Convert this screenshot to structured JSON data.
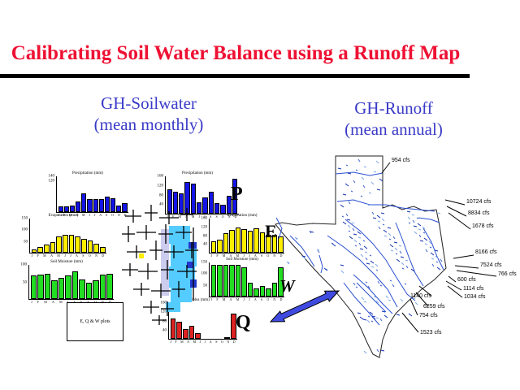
{
  "slide": {
    "title": "Calibrating Soil Water Balance using a Runoff Map",
    "headings": {
      "left": {
        "line1": "GH-Soilwater",
        "line2": "(mean monthly)"
      },
      "right": {
        "line1": "GH-Runoff",
        "line2": "(mean annual)"
      }
    },
    "colors": {
      "title": "#ee1133",
      "heading": "#3a3ac8",
      "arrow": "#3f4be0"
    }
  },
  "water_balance_letters": [
    {
      "id": "precipitation",
      "label": "P"
    },
    {
      "id": "evaporation",
      "label": "E"
    },
    {
      "id": "soil-water",
      "label": "W"
    },
    {
      "id": "surplus",
      "label": "Q"
    }
  ],
  "legend_box": {
    "text": "E, Q & W plots"
  },
  "chart_data": [
    {
      "type": "bar",
      "title": "Precipitation (mm)",
      "color": "#1414e6",
      "ylim": 140,
      "yticks": [
        140,
        120
      ],
      "categories": [
        "J",
        "F",
        "M",
        "A",
        "M",
        "J",
        "J",
        "A",
        "S",
        "O",
        "N",
        "D"
      ],
      "values": [
        22,
        22,
        25,
        42,
        72,
        52,
        50,
        52,
        62,
        55,
        25,
        35
      ]
    },
    {
      "type": "bar",
      "title": "Precipitation (mm)",
      "color": "#1414e6",
      "ylim": 160,
      "yticks": [
        160,
        120,
        80,
        40
      ],
      "categories": [
        "J",
        "F",
        "M",
        "A",
        "M",
        "J",
        "J",
        "A",
        "S",
        "O",
        "N",
        "D"
      ],
      "values": [
        105,
        95,
        88,
        135,
        128,
        50,
        70,
        95,
        45,
        40,
        75,
        150
      ]
    },
    {
      "type": "bar",
      "title": "Evaporation (mm)",
      "color": "#ffee00",
      "ylim": 150,
      "yticks": [
        150,
        100,
        50
      ],
      "categories": [
        "J",
        "F",
        "M",
        "A",
        "M",
        "J",
        "J",
        "A",
        "S",
        "O",
        "N",
        "D"
      ],
      "values": [
        15,
        25,
        35,
        45,
        72,
        80,
        78,
        72,
        62,
        55,
        40,
        25
      ]
    },
    {
      "type": "bar",
      "title": "Evaporation (mm)",
      "color": "#ffee00",
      "ylim": 160,
      "yticks": [
        160,
        120,
        80,
        40
      ],
      "categories": [
        "J",
        "F",
        "M",
        "A",
        "M",
        "J",
        "J",
        "A",
        "S",
        "O",
        "N",
        "D"
      ],
      "values": [
        55,
        62,
        90,
        108,
        118,
        110,
        102,
        115,
        95,
        85,
        82,
        78
      ]
    },
    {
      "type": "bar",
      "title": "Soil Moisture (mm)",
      "color": "#22dd22",
      "ylim": 100,
      "yticks": [
        100,
        50
      ],
      "categories": [
        "J",
        "F",
        "M",
        "A",
        "M",
        "J",
        "J",
        "A",
        "S",
        "O",
        "N",
        "D"
      ],
      "values": [
        68,
        72,
        75,
        55,
        62,
        68,
        80,
        58,
        48,
        55,
        72,
        75
      ]
    },
    {
      "type": "bar",
      "title": "Soil Moisture (mm)",
      "color": "#22dd22",
      "ylim": 150,
      "yticks": [
        150,
        100,
        50
      ],
      "categories": [
        "J",
        "F",
        "M",
        "A",
        "M",
        "J",
        "J",
        "A",
        "S",
        "O",
        "N",
        "D"
      ],
      "values": [
        140,
        140,
        140,
        140,
        140,
        130,
        60,
        35,
        45,
        35,
        60,
        130
      ]
    },
    {
      "type": "bar",
      "title": "Surplus (mm)",
      "color": "#dd2222",
      "ylim": 160,
      "yticks": [
        160,
        120,
        80,
        40
      ],
      "categories": [
        "J",
        "F",
        "M",
        "A",
        "M",
        "J",
        "J",
        "A",
        "S",
        "O",
        "N",
        "D"
      ],
      "values": [
        90,
        75,
        45,
        58,
        25,
        0,
        0,
        0,
        0,
        0,
        8,
        112
      ]
    }
  ],
  "runoff_map": {
    "unit": "cfs",
    "flow_labels": [
      "954 cfs",
      "10724 cfs",
      "8834 cfs",
      "1678 cfs",
      "8166 cfs",
      "7524 cfs",
      "766 cfs",
      "600 cfs",
      "1114 cfs",
      "1034 cfs",
      "1140 cfs",
      "6259 cfs",
      "754 cfs",
      "1523 cfs"
    ]
  }
}
